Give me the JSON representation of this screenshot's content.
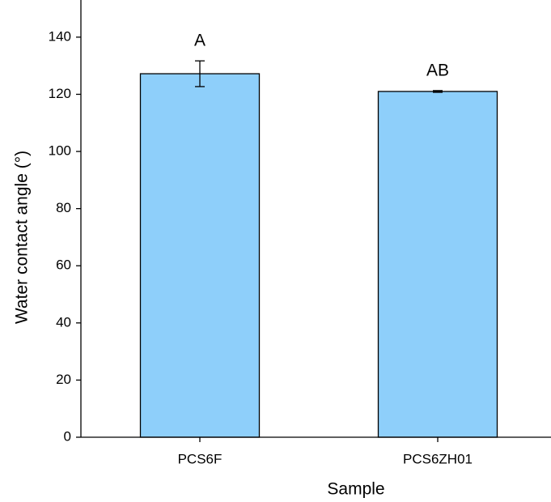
{
  "chart_data": {
    "type": "bar",
    "y_label": "Water contact angle (°)",
    "x_label": "Sample",
    "categories": [
      "PCS6F",
      "PCS6ZH01"
    ],
    "values": [
      127.2,
      121
    ],
    "errors": [
      4.5,
      0.3
    ],
    "annotations": [
      "A",
      "AB"
    ],
    "color": "#8ecffa",
    "ylim": [
      0,
      153
    ],
    "yticks": [
      0,
      20,
      40,
      60,
      80,
      100,
      120,
      140
    ]
  }
}
